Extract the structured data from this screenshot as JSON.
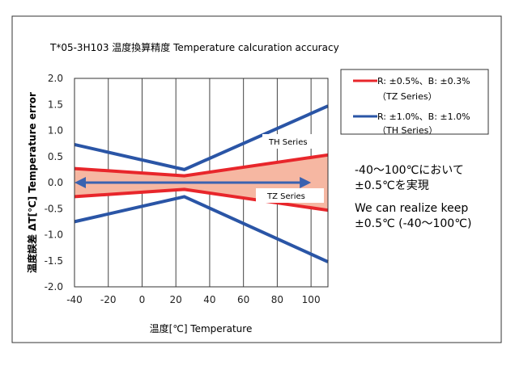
{
  "chart_data": {
    "type": "line",
    "title": "T*05-3H103  温度換算精度  Temperature calcuration accuracy",
    "xlabel": "温度[℃]  Temperature",
    "ylabel": "温度誤差  ΔT[℃]  Temperature error",
    "xlim": [
      -40,
      110
    ],
    "ylim": [
      -2.0,
      2.0
    ],
    "xticks": [
      "-40",
      "-20",
      "0",
      "20",
      "40",
      "60",
      "80",
      "100"
    ],
    "xtick_values": [
      -40,
      -20,
      0,
      20,
      40,
      60,
      80,
      100
    ],
    "yticks": [
      "2.0",
      "1.5",
      "1.0",
      "0.5",
      "0.0",
      "-0.5",
      "-1.0",
      "-1.5",
      "-2.0"
    ],
    "ytick_values": [
      2,
      1.5,
      1,
      0.5,
      0,
      -0.5,
      -1,
      -1.5,
      -2
    ],
    "grid": "vertical",
    "series": [
      {
        "name": "R: ±0.5%、B: ±0.3%",
        "sub": "（TZ Series）",
        "color": "#e8262b",
        "upper": [
          [
            -40,
            0.27
          ],
          [
            25,
            0.13
          ],
          [
            110,
            0.53
          ]
        ],
        "lower": [
          [
            -40,
            -0.27
          ],
          [
            25,
            -0.13
          ],
          [
            110,
            -0.53
          ]
        ],
        "fill": "#f6b7a2"
      },
      {
        "name": "R: ±1.0%、B: ±1.0%",
        "sub": "（TH Series）",
        "color": "#2a55a6",
        "upper": [
          [
            -40,
            0.73
          ],
          [
            25,
            0.25
          ],
          [
            110,
            1.47
          ]
        ],
        "lower": [
          [
            -40,
            -0.75
          ],
          [
            25,
            -0.27
          ],
          [
            110,
            -1.52
          ]
        ]
      }
    ],
    "annotations": {
      "th_label": "TH Series",
      "tz_label": "TZ Series",
      "arrow_range": [
        -40,
        100
      ],
      "arrow_color": "#3a62b0"
    },
    "legend": "right"
  },
  "notes": {
    "jp_line1": "-40～100℃において",
    "jp_line2": "±0.5℃を実現",
    "en_line1": "We can realize keep",
    "en_line2": "±0.5℃ (-40～100℃)"
  }
}
